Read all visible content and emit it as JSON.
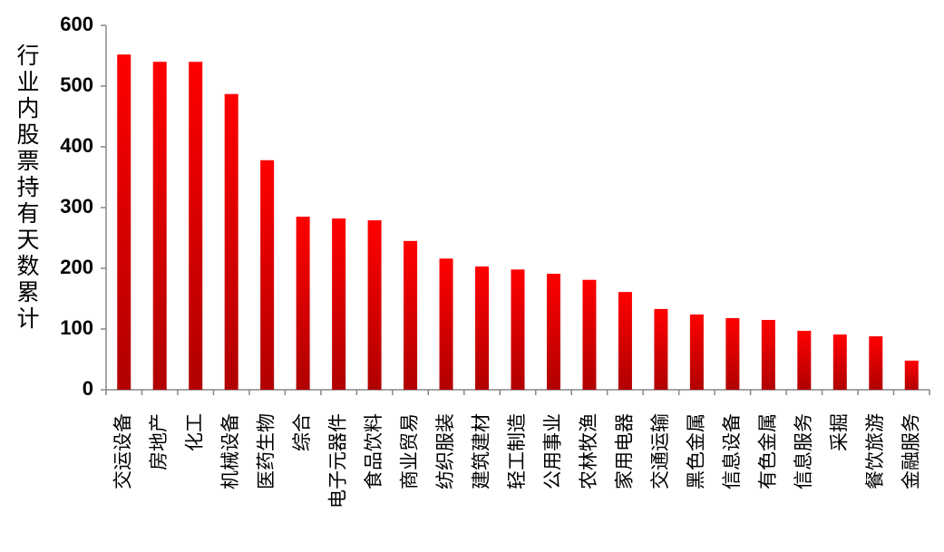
{
  "chart_data": {
    "type": "bar",
    "y_label": "行业内股票持有天数累计",
    "categories": [
      "交运设备",
      "房地产",
      "化工",
      "机械设备",
      "医药生物",
      "综合",
      "电子元器件",
      "食品饮料",
      "商业贸易",
      "纺织服装",
      "建筑建材",
      "轻工制造",
      "公用事业",
      "农林牧渔",
      "家用电器",
      "交通运输",
      "黑色金属",
      "信息设备",
      "有色金属",
      "信息服务",
      "采掘",
      "餐饮旅游",
      "金融服务"
    ],
    "values": [
      552,
      540,
      540,
      487,
      378,
      285,
      282,
      279,
      245,
      216,
      203,
      198,
      191,
      181,
      161,
      133,
      124,
      118,
      115,
      97,
      91,
      88,
      48
    ],
    "color": "#ff0000",
    "ylim": [
      0,
      600
    ],
    "yticks": [
      0,
      100,
      200,
      300,
      400,
      500,
      600
    ],
    "grid": false
  }
}
